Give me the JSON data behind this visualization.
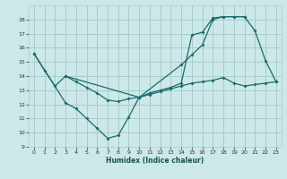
{
  "xlabel": "Humidex (Indice chaleur)",
  "bg_color": "#cce8e8",
  "grid_color": "#aacccc",
  "line_color": "#1a6b6b",
  "line1_x": [
    0,
    1,
    2,
    3,
    10,
    11,
    12,
    13,
    14,
    15,
    16,
    17,
    18,
    19,
    20,
    21,
    22,
    23
  ],
  "line1_y": [
    15.6,
    14.4,
    13.3,
    14.0,
    12.5,
    12.8,
    13.0,
    13.2,
    13.5,
    16.9,
    17.1,
    18.1,
    18.2,
    18.2,
    18.2,
    17.2,
    15.1,
    13.6
  ],
  "line2_x": [
    0,
    3,
    4,
    5,
    6,
    7,
    8,
    9,
    10,
    14,
    15,
    16,
    17,
    18,
    19,
    20
  ],
  "line2_y": [
    15.6,
    12.1,
    11.7,
    11.0,
    10.3,
    9.6,
    9.8,
    11.1,
    12.5,
    14.8,
    15.5,
    16.2,
    18.0,
    18.2,
    18.2,
    18.2
  ],
  "line3_x": [
    3,
    4,
    5,
    6,
    7,
    8,
    9,
    10,
    11,
    12,
    13,
    14,
    15,
    16,
    17,
    18,
    19,
    20,
    21,
    22,
    23
  ],
  "line3_y": [
    14.0,
    13.6,
    13.2,
    12.8,
    12.3,
    12.2,
    12.4,
    12.5,
    12.7,
    12.9,
    13.1,
    13.3,
    13.5,
    13.6,
    13.7,
    13.9,
    13.5,
    13.3,
    13.4,
    13.5,
    13.6
  ],
  "xlim": [
    -0.5,
    23.5
  ],
  "ylim": [
    9,
    19
  ],
  "yticks": [
    9,
    10,
    11,
    12,
    13,
    14,
    15,
    16,
    17,
    18
  ],
  "xticks": [
    0,
    1,
    2,
    3,
    4,
    5,
    6,
    7,
    8,
    9,
    10,
    11,
    12,
    13,
    14,
    15,
    16,
    17,
    18,
    19,
    20,
    21,
    22,
    23
  ]
}
